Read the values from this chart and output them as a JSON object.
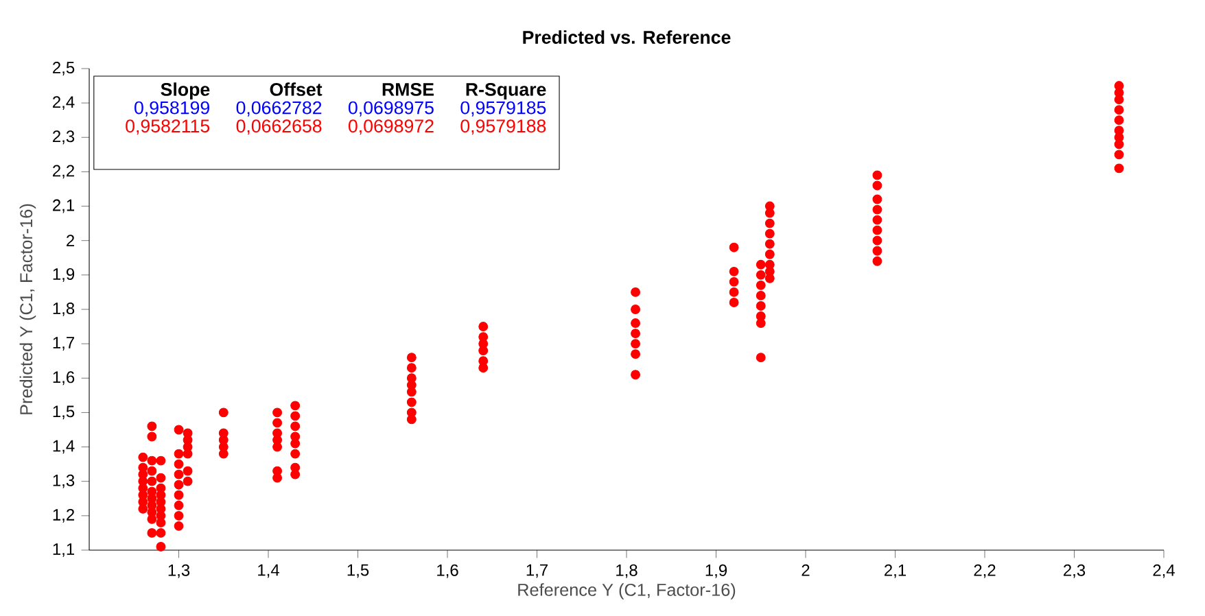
{
  "chart_data": {
    "type": "scatter",
    "title": "Predicted vs. Reference",
    "xlabel": "Reference Y (C1, Factor-16)",
    "ylabel": "Predicted Y (C1, Factor-16)",
    "annotations": [
      "Slope",
      "Offset",
      "RMSE",
      "R-Square",
      "0,958199",
      "0,0662782",
      "0,0698975",
      "0,9579185",
      "0,9582115",
      "0,0662658",
      "0,0698972",
      "0,9579188"
    ],
    "series": [
      {
        "color": "#ff0000",
        "x": [
          1.26,
          1.26,
          1.26,
          1.26,
          1.26,
          1.26,
          1.26,
          1.26,
          1.27,
          1.27,
          1.27,
          1.27,
          1.27,
          1.27,
          1.27,
          1.27,
          1.27,
          1.27,
          1.27,
          1.28,
          1.28,
          1.28,
          1.28,
          1.28,
          1.28,
          1.28,
          1.28,
          1.28,
          1.28,
          1.3,
          1.3,
          1.3,
          1.3,
          1.3,
          1.3,
          1.3,
          1.3,
          1.3,
          1.31,
          1.31,
          1.31,
          1.31,
          1.31,
          1.31,
          1.35,
          1.35,
          1.35,
          1.35,
          1.35,
          1.41,
          1.41,
          1.41,
          1.41,
          1.41,
          1.41,
          1.41,
          1.43,
          1.43,
          1.43,
          1.43,
          1.43,
          1.43,
          1.43,
          1.43,
          1.56,
          1.56,
          1.56,
          1.56,
          1.56,
          1.56,
          1.56,
          1.56,
          1.64,
          1.64,
          1.64,
          1.64,
          1.64,
          1.64,
          1.81,
          1.81,
          1.81,
          1.81,
          1.81,
          1.81,
          1.81,
          1.92,
          1.92,
          1.92,
          1.92,
          1.92,
          1.95,
          1.95,
          1.95,
          1.95,
          1.95,
          1.95,
          1.95,
          1.95,
          1.96,
          1.96,
          1.96,
          1.96,
          1.96,
          1.96,
          1.96,
          1.96,
          1.96,
          2.08,
          2.08,
          2.08,
          2.08,
          2.08,
          2.08,
          2.08,
          2.08,
          2.08,
          2.35,
          2.35,
          2.35,
          2.35,
          2.35,
          2.35,
          2.35,
          2.35,
          2.35,
          2.35
        ],
        "values": [
          1.22,
          1.24,
          1.26,
          1.28,
          1.3,
          1.32,
          1.34,
          1.37,
          1.15,
          1.19,
          1.21,
          1.23,
          1.25,
          1.27,
          1.3,
          1.33,
          1.36,
          1.43,
          1.46,
          1.11,
          1.15,
          1.18,
          1.2,
          1.22,
          1.24,
          1.26,
          1.28,
          1.31,
          1.36,
          1.17,
          1.2,
          1.23,
          1.26,
          1.29,
          1.32,
          1.35,
          1.38,
          1.45,
          1.3,
          1.33,
          1.38,
          1.4,
          1.42,
          1.44,
          1.38,
          1.4,
          1.42,
          1.44,
          1.5,
          1.31,
          1.33,
          1.4,
          1.42,
          1.44,
          1.47,
          1.5,
          1.32,
          1.34,
          1.38,
          1.41,
          1.43,
          1.46,
          1.49,
          1.52,
          1.48,
          1.5,
          1.53,
          1.56,
          1.58,
          1.6,
          1.63,
          1.66,
          1.63,
          1.65,
          1.68,
          1.7,
          1.72,
          1.75,
          1.61,
          1.67,
          1.7,
          1.73,
          1.76,
          1.8,
          1.85,
          1.82,
          1.85,
          1.88,
          1.91,
          1.98,
          1.66,
          1.76,
          1.78,
          1.81,
          1.84,
          1.87,
          1.9,
          1.93,
          1.89,
          1.91,
          1.93,
          1.96,
          1.99,
          2.02,
          2.05,
          2.08,
          2.1,
          1.94,
          1.97,
          2.0,
          2.03,
          2.06,
          2.09,
          2.12,
          2.16,
          2.19,
          2.21,
          2.25,
          2.28,
          2.3,
          2.32,
          2.35,
          2.38,
          2.41,
          2.43,
          2.45
        ]
      }
    ],
    "marker": "circle",
    "grid": false,
    "xlim": [
      1.2,
      2.4
    ],
    "ylim": [
      1.1,
      2.5
    ],
    "xticks": [
      {
        "value": 1.3,
        "label": "1,3"
      },
      {
        "value": 1.4,
        "label": "1,4"
      },
      {
        "value": 1.5,
        "label": "1,5"
      },
      {
        "value": 1.6,
        "label": "1,6"
      },
      {
        "value": 1.7,
        "label": "1,7"
      },
      {
        "value": 1.8,
        "label": "1,8"
      },
      {
        "value": 1.9,
        "label": "1,9"
      },
      {
        "value": 2,
        "label": "2"
      },
      {
        "value": 2.1,
        "label": "2,1"
      },
      {
        "value": 2.2,
        "label": "2,2"
      },
      {
        "value": 2.3,
        "label": "2,3"
      },
      {
        "value": 2.4,
        "label": "2,4"
      }
    ],
    "yticks": [
      {
        "value": 1.1,
        "label": "1,1"
      },
      {
        "value": 1.2,
        "label": "1,2"
      },
      {
        "value": 1.3,
        "label": "1,3"
      },
      {
        "value": 1.4,
        "label": "1,4"
      },
      {
        "value": 1.5,
        "label": "1,5"
      },
      {
        "value": 1.6,
        "label": "1,6"
      },
      {
        "value": 1.7,
        "label": "1,7"
      },
      {
        "value": 1.8,
        "label": "1,8"
      },
      {
        "value": 1.9,
        "label": "1,9"
      },
      {
        "value": 2,
        "label": "2"
      },
      {
        "value": 2.1,
        "label": "2,1"
      },
      {
        "value": 2.2,
        "label": "2,2"
      },
      {
        "value": 2.3,
        "label": "2,3"
      },
      {
        "value": 2.4,
        "label": "2,4"
      },
      {
        "value": 2.5,
        "label": "2,5"
      }
    ]
  }
}
